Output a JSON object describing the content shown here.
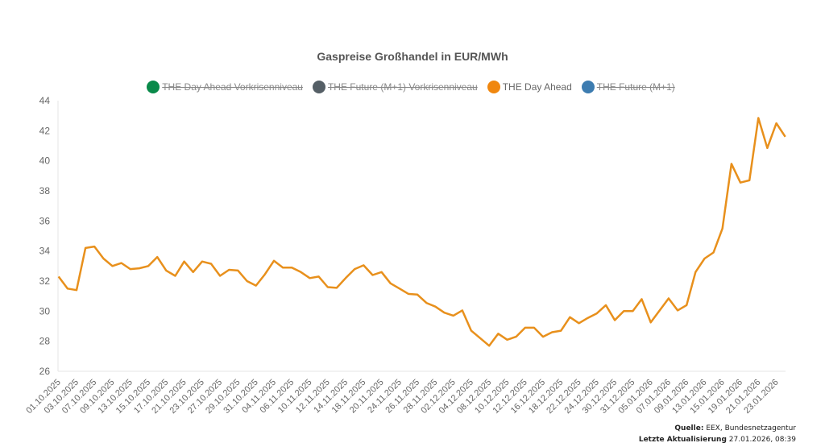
{
  "chart": {
    "title": "Gaspreise Großhandel in EUR/MWh",
    "legend": [
      {
        "label": "THE Day Ahead Vorkrisenniveau",
        "color": "#0a8a4a",
        "hidden": true
      },
      {
        "label": "THE Future (M+1) Vorkrisenniveau",
        "color": "#555f66",
        "hidden": true
      },
      {
        "label": "THE Day Ahead",
        "color": "#f0870f",
        "hidden": false
      },
      {
        "label": "THE Future (M+1)",
        "color": "#3d7cb0",
        "hidden": true
      }
    ]
  },
  "footer": {
    "source_label": "Quelle:",
    "source_value": "EEX, Bundesnetzagentur",
    "updated_label": "Letzte Aktualisierung",
    "updated_value": "27.01.2026, 08:39"
  },
  "chart_data": {
    "type": "line",
    "title": "Gaspreise Großhandel in EUR/MWh",
    "xlabel": "",
    "ylabel": "",
    "ylim": [
      26,
      44
    ],
    "yticks": [
      26,
      28,
      30,
      32,
      34,
      36,
      38,
      40,
      42,
      44
    ],
    "grid": false,
    "legend_position": "top",
    "x_tick_labels": [
      "01.10.2025",
      "03.10.2025",
      "07.10.2025",
      "09.10.2025",
      "13.10.2025",
      "15.10.2025",
      "17.10.2025",
      "21.10.2025",
      "23.10.2025",
      "27.10.2025",
      "29.10.2025",
      "31.10.2025",
      "04.11.2025",
      "06.11.2025",
      "10.11.2025",
      "12.11.2025",
      "14.11.2025",
      "18.11.2025",
      "20.11.2025",
      "24.11.2025",
      "26.11.2025",
      "28.11.2025",
      "02.12.2025",
      "04.12.2025",
      "08.12.2025",
      "10.12.2025",
      "12.12.2025",
      "16.12.2025",
      "18.12.2025",
      "22.12.2025",
      "24.12.2025",
      "30.12.2025",
      "31.12.2025",
      "05.01.2026",
      "07.01.2026",
      "09.01.2026",
      "13.01.2026",
      "15.01.2026",
      "19.01.2026",
      "21.01.2026",
      "23.01.2026"
    ],
    "series": [
      {
        "name": "THE Day Ahead Vorkrisenniveau",
        "visible": false,
        "values": []
      },
      {
        "name": "THE Future (M+1) Vorkrisenniveau",
        "visible": false,
        "values": []
      },
      {
        "name": "THE Day Ahead",
        "visible": true,
        "color": "#e8901c",
        "values": [
          32.3,
          31.5,
          31.4,
          34.2,
          34.3,
          33.5,
          33.0,
          33.2,
          32.8,
          32.85,
          33.0,
          33.6,
          32.7,
          32.35,
          33.3,
          32.6,
          33.3,
          33.15,
          32.35,
          32.75,
          32.7,
          32.0,
          31.7,
          32.45,
          33.35,
          32.9,
          32.9,
          32.6,
          32.2,
          32.3,
          31.6,
          31.55,
          32.2,
          32.8,
          33.05,
          32.4,
          32.6,
          31.85,
          31.5,
          31.15,
          31.1,
          30.55,
          30.3,
          29.9,
          29.7,
          30.05,
          28.7,
          28.2,
          27.7,
          28.5,
          28.1,
          28.3,
          28.9,
          28.9,
          28.3,
          28.6,
          28.7,
          29.6,
          29.2,
          29.55,
          29.85,
          30.4,
          29.4,
          30.0,
          30.0,
          30.8,
          29.25,
          30.05,
          30.85,
          30.05,
          30.4,
          32.6,
          33.5,
          33.9,
          35.5,
          39.8,
          38.55,
          38.7,
          42.85,
          40.85,
          42.5,
          41.6
        ]
      },
      {
        "name": "THE Future (M+1)",
        "visible": false,
        "values": []
      }
    ]
  }
}
